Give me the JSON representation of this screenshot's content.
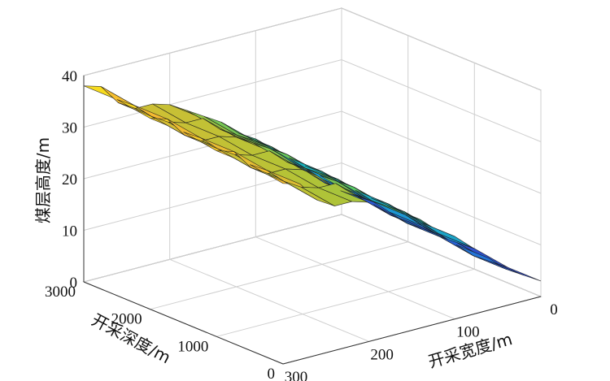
{
  "chart_data": {
    "type": "surface",
    "title": "",
    "xlabel": "开采宽度/m",
    "ylabel": "开采深度/m",
    "zlabel": "煤层高度/m",
    "x_ticks": [
      "0",
      "100",
      "200",
      "300"
    ],
    "y_ticks": [
      "0",
      "1000",
      "2000",
      "3000"
    ],
    "z_ticks": [
      "0",
      "10",
      "20",
      "30",
      "40"
    ],
    "xlim": [
      0,
      300
    ],
    "ylim": [
      0,
      3000
    ],
    "zlim": [
      0,
      40
    ],
    "x_grid": [
      0,
      20,
      40,
      60,
      80,
      100,
      120,
      140,
      160,
      180,
      200,
      220,
      240,
      260,
      280,
      300
    ],
    "y_grid": [
      0,
      500,
      1000,
      1500,
      2000,
      2500,
      3000
    ],
    "z_values": [
      [
        3,
        5,
        7,
        10,
        13,
        16,
        18,
        21,
        23,
        25,
        27,
        28,
        28,
        30,
        34,
        35
      ],
      [
        3,
        5,
        7,
        10,
        13,
        16,
        19,
        21,
        23,
        25,
        28,
        28,
        29,
        31,
        34,
        36
      ],
      [
        4,
        6,
        8,
        11,
        14,
        17,
        19,
        22,
        24,
        26,
        28,
        29,
        29,
        31,
        35,
        36
      ],
      [
        4,
        6,
        8,
        11,
        14,
        17,
        20,
        22,
        24,
        26,
        29,
        29,
        30,
        32,
        35,
        37
      ],
      [
        4,
        6,
        9,
        12,
        15,
        18,
        20,
        23,
        25,
        27,
        29,
        30,
        30,
        32,
        36,
        37
      ],
      [
        5,
        7,
        9,
        12,
        15,
        18,
        21,
        23,
        25,
        27,
        30,
        30,
        31,
        33,
        36,
        38
      ],
      [
        5,
        7,
        10,
        13,
        16,
        19,
        21,
        24,
        26,
        28,
        30,
        31,
        31,
        33,
        37,
        38
      ]
    ],
    "colormap": [
      "#3e26a8",
      "#2a5bd5",
      "#1e8fd8",
      "#1ab5b7",
      "#5ec962",
      "#b4c336",
      "#f6ba32",
      "#f9fb0e"
    ],
    "grid": true
  }
}
